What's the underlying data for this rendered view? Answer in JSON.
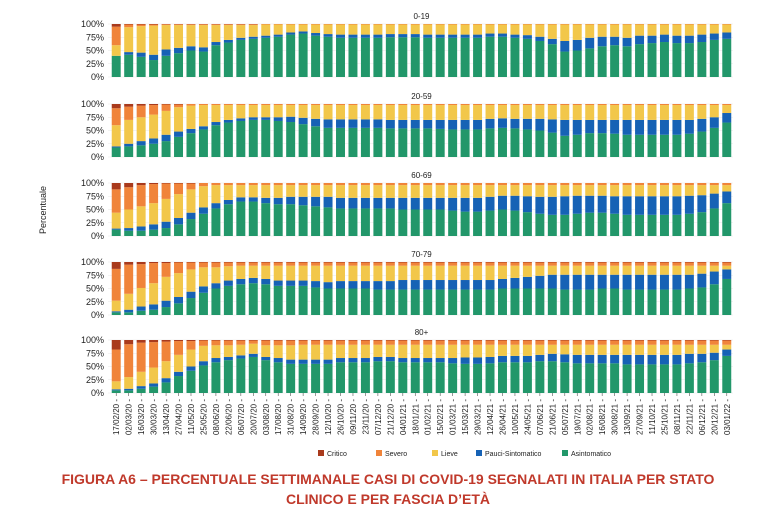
{
  "chart_data": {
    "type": "bar",
    "stacked": true,
    "ylabel": "Percentuale",
    "y_ticks": [
      "100%",
      "75%",
      "50%",
      "25%",
      "0%"
    ],
    "ylim": [
      0,
      100
    ],
    "x_tick_labels": [
      "17/02/20",
      "02/03/20",
      "16/03/20",
      "30/03/20",
      "13/04/20",
      "27/04/20",
      "11/05/20",
      "25/05/20",
      "08/06/20",
      "22/06/20",
      "06/07/20",
      "20/07/20",
      "03/08/20",
      "17/08/20",
      "31/08/20",
      "14/09/20",
      "28/09/20",
      "12/10/20",
      "26/10/20",
      "09/11/20",
      "23/11/20",
      "07/12/20",
      "21/12/20",
      "04/01/21",
      "18/01/21",
      "01/02/21",
      "15/02/21",
      "01/03/21",
      "15/03/21",
      "29/03/21",
      "12/04/21",
      "26/04/21",
      "10/05/21",
      "24/05/21",
      "07/06/21",
      "21/06/21",
      "05/07/21",
      "19/07/21",
      "02/08/21",
      "16/08/21",
      "30/08/21",
      "13/09/21",
      "27/09/21",
      "11/10/21",
      "25/10/21",
      "08/11/21",
      "22/11/21",
      "06/12/21",
      "20/12/21",
      "03/01/22"
    ],
    "legend": {
      "placement": "bottom",
      "entries": [
        {
          "name": "Critico",
          "color": "#a93a1c"
        },
        {
          "name": "Severo",
          "color": "#f0843a"
        },
        {
          "name": "Lieve",
          "color": "#f2c74a"
        },
        {
          "name": "Pauci-Sintomatico",
          "color": "#1662b5"
        },
        {
          "name": "Asintomatico",
          "color": "#22976a"
        }
      ]
    },
    "panels": [
      {
        "title": "0-19",
        "asintomatico": [
          40,
          42,
          38,
          32,
          40,
          45,
          50,
          48,
          60,
          65,
          70,
          72,
          74,
          76,
          80,
          82,
          78,
          76,
          74,
          74,
          74,
          74,
          75,
          75,
          75,
          74,
          74,
          74,
          74,
          74,
          76,
          76,
          74,
          72,
          68,
          62,
          48,
          50,
          54,
          58,
          60,
          58,
          62,
          64,
          66,
          64,
          64,
          66,
          70,
          72
        ],
        "pauci": [
          0,
          5,
          8,
          10,
          12,
          10,
          8,
          8,
          6,
          5,
          4,
          4,
          4,
          4,
          4,
          4,
          5,
          5,
          6,
          6,
          6,
          6,
          6,
          6,
          6,
          6,
          6,
          6,
          6,
          6,
          6,
          6,
          6,
          7,
          8,
          10,
          20,
          20,
          20,
          18,
          16,
          16,
          16,
          14,
          14,
          14,
          14,
          14,
          12,
          12
        ],
        "lieve": [
          20,
          47,
          50,
          55,
          46,
          43,
          40,
          42,
          32,
          28,
          24,
          22,
          21,
          19,
          15,
          13,
          16,
          18,
          19,
          19,
          19,
          19,
          18,
          18,
          18,
          19,
          19,
          19,
          19,
          19,
          17,
          17,
          19,
          20,
          23,
          27,
          31,
          29,
          25,
          23,
          23,
          25,
          21,
          21,
          19,
          21,
          21,
          19,
          17,
          15
        ],
        "severo": [
          35,
          5,
          3,
          2,
          1.5,
          1.5,
          1.5,
          1.5,
          1.5,
          1.5,
          1.5,
          1.5,
          1,
          1,
          1,
          1,
          1,
          1,
          1,
          1,
          1,
          1,
          1,
          1,
          1,
          1,
          1,
          1,
          1,
          1,
          1,
          1,
          1,
          1,
          1,
          1,
          1,
          1,
          1,
          1,
          1,
          1,
          1,
          1,
          1,
          1,
          1,
          1,
          1,
          1
        ],
        "critico": [
          5,
          1,
          1,
          1,
          0.5,
          0.5,
          0.5,
          0.5,
          0.5,
          0.5,
          0.5,
          0.5,
          0,
          0,
          0,
          0,
          0,
          0,
          0,
          0,
          0,
          0,
          0,
          0,
          0,
          0,
          0,
          0,
          0,
          0,
          0,
          0,
          0,
          0,
          0,
          0,
          0,
          0,
          0,
          0,
          0,
          0,
          0,
          0,
          0,
          0,
          0,
          0,
          0,
          0
        ]
      },
      {
        "title": "20-59",
        "asintomatico": [
          18,
          20,
          22,
          25,
          30,
          38,
          45,
          52,
          60,
          65,
          68,
          70,
          70,
          68,
          66,
          62,
          58,
          55,
          55,
          55,
          55,
          55,
          54,
          54,
          54,
          54,
          53,
          52,
          52,
          52,
          54,
          55,
          54,
          52,
          50,
          46,
          40,
          42,
          45,
          45,
          44,
          42,
          42,
          42,
          42,
          42,
          44,
          48,
          55,
          65
        ],
        "pauci": [
          2,
          5,
          8,
          10,
          12,
          10,
          8,
          6,
          6,
          5,
          5,
          5,
          5,
          7,
          10,
          12,
          14,
          16,
          16,
          16,
          16,
          16,
          16,
          16,
          16,
          16,
          17,
          18,
          18,
          18,
          18,
          18,
          18,
          20,
          22,
          25,
          30,
          28,
          25,
          25,
          26,
          28,
          28,
          28,
          28,
          28,
          26,
          24,
          20,
          18
        ],
        "lieve": [
          40,
          45,
          45,
          45,
          45,
          46,
          44,
          40,
          32,
          28,
          25,
          23,
          23,
          23,
          22,
          24,
          26,
          27,
          27,
          27,
          27,
          27,
          28,
          28,
          28,
          28,
          28,
          28,
          28,
          28,
          26,
          25,
          26,
          26,
          26,
          27,
          28,
          28,
          28,
          28,
          28,
          28,
          28,
          28,
          28,
          28,
          28,
          26,
          23,
          15
        ],
        "severo": [
          32,
          25,
          22,
          18,
          12,
          5,
          3,
          2,
          2,
          2,
          2,
          2,
          2,
          2,
          2,
          2,
          2,
          2,
          2,
          2,
          2,
          2,
          2,
          2,
          2,
          2,
          2,
          2,
          2,
          2,
          2,
          2,
          2,
          2,
          2,
          2,
          2,
          2,
          2,
          2,
          2,
          2,
          2,
          2,
          2,
          2,
          2,
          2,
          2,
          2
        ],
        "critico": [
          8,
          5,
          3,
          2,
          1,
          1,
          0,
          0,
          0,
          0,
          0,
          0,
          0,
          0,
          0,
          0,
          0,
          0,
          0,
          0,
          0,
          0,
          0,
          0,
          0,
          0,
          0,
          0,
          0,
          0,
          0,
          0,
          0,
          0,
          0,
          0,
          0,
          0,
          0,
          0,
          0,
          0,
          0,
          0,
          0,
          0,
          0,
          0,
          0,
          0
        ]
      },
      {
        "title": "60-69",
        "asintomatico": [
          12,
          10,
          10,
          12,
          15,
          22,
          32,
          42,
          52,
          60,
          65,
          65,
          62,
          60,
          60,
          58,
          56,
          54,
          52,
          52,
          52,
          52,
          52,
          50,
          50,
          50,
          50,
          48,
          46,
          46,
          48,
          50,
          48,
          45,
          42,
          40,
          40,
          42,
          44,
          44,
          42,
          40,
          40,
          40,
          40,
          40,
          42,
          45,
          52,
          62
        ],
        "pauci": [
          2,
          5,
          8,
          10,
          12,
          12,
          12,
          12,
          10,
          8,
          8,
          8,
          10,
          12,
          14,
          16,
          18,
          20,
          20,
          20,
          20,
          20,
          20,
          22,
          22,
          22,
          22,
          24,
          26,
          26,
          26,
          26,
          28,
          30,
          32,
          34,
          35,
          34,
          32,
          32,
          33,
          35,
          35,
          35,
          35,
          35,
          34,
          32,
          28,
          22
        ],
        "lieve": [
          30,
          35,
          38,
          40,
          43,
          45,
          44,
          40,
          34,
          28,
          23,
          23,
          24,
          24,
          22,
          22,
          22,
          22,
          24,
          24,
          24,
          24,
          24,
          24,
          24,
          24,
          24,
          24,
          24,
          24,
          22,
          20,
          20,
          21,
          22,
          22,
          21,
          20,
          20,
          20,
          21,
          21,
          21,
          21,
          21,
          21,
          20,
          19,
          16,
          12
        ],
        "severo": [
          44,
          42,
          40,
          36,
          29,
          20,
          11,
          6,
          4,
          4,
          4,
          4,
          4,
          4,
          4,
          4,
          4,
          4,
          4,
          4,
          4,
          4,
          4,
          4,
          4,
          4,
          4,
          4,
          4,
          4,
          4,
          4,
          4,
          4,
          4,
          4,
          4,
          4,
          4,
          4,
          4,
          4,
          4,
          4,
          4,
          4,
          4,
          4,
          4,
          4
        ],
        "critico": [
          12,
          8,
          4,
          2,
          1,
          1,
          1,
          0,
          0,
          0,
          0,
          0,
          0,
          0,
          0,
          0,
          0,
          0,
          0,
          0,
          0,
          0,
          0,
          0,
          0,
          0,
          0,
          0,
          0,
          0,
          0,
          0,
          0,
          0,
          0,
          0,
          0,
          0,
          0,
          0,
          0,
          0,
          0,
          0,
          0,
          0,
          0,
          0,
          0,
          0
        ]
      },
      {
        "title": "70-79",
        "asintomatico": [
          5,
          5,
          8,
          10,
          15,
          22,
          32,
          42,
          50,
          55,
          58,
          60,
          58,
          55,
          55,
          55,
          52,
          50,
          50,
          50,
          50,
          48,
          48,
          48,
          48,
          48,
          48,
          48,
          48,
          48,
          48,
          50,
          50,
          50,
          50,
          50,
          48,
          48,
          48,
          50,
          50,
          48,
          48,
          48,
          48,
          48,
          50,
          52,
          58,
          68
        ],
        "pauci": [
          2,
          5,
          8,
          10,
          12,
          12,
          12,
          12,
          10,
          10,
          10,
          10,
          10,
          10,
          10,
          10,
          12,
          12,
          14,
          14,
          14,
          16,
          16,
          18,
          18,
          18,
          18,
          18,
          18,
          18,
          18,
          18,
          20,
          22,
          24,
          26,
          28,
          28,
          28,
          26,
          26,
          28,
          28,
          28,
          28,
          28,
          26,
          26,
          24,
          18
        ],
        "lieve": [
          20,
          30,
          35,
          40,
          45,
          45,
          42,
          36,
          30,
          27,
          25,
          23,
          25,
          28,
          28,
          28,
          29,
          31,
          29,
          29,
          29,
          29,
          29,
          27,
          27,
          27,
          27,
          27,
          27,
          27,
          27,
          25,
          23,
          21,
          19,
          17,
          17,
          17,
          17,
          17,
          17,
          17,
          17,
          17,
          17,
          17,
          17,
          15,
          11,
          7
        ],
        "severo": [
          60,
          55,
          45,
          38,
          26,
          20,
          13,
          9,
          9,
          7,
          6,
          6,
          6,
          6,
          6,
          6,
          6,
          6,
          6,
          6,
          6,
          6,
          6,
          6,
          6,
          6,
          6,
          6,
          6,
          6,
          6,
          6,
          6,
          6,
          6,
          6,
          6,
          6,
          6,
          6,
          6,
          6,
          6,
          6,
          6,
          6,
          6,
          6,
          6,
          6
        ],
        "critico": [
          13,
          5,
          4,
          2,
          2,
          1,
          1,
          1,
          1,
          1,
          1,
          1,
          1,
          1,
          1,
          1,
          1,
          1,
          1,
          1,
          1,
          1,
          1,
          1,
          1,
          1,
          1,
          1,
          1,
          1,
          1,
          1,
          1,
          1,
          1,
          1,
          1,
          1,
          1,
          1,
          1,
          1,
          1,
          1,
          1,
          1,
          1,
          1,
          1,
          1
        ]
      },
      {
        "title": "80+",
        "asintomatico": [
          5,
          5,
          8,
          12,
          20,
          32,
          42,
          52,
          58,
          62,
          65,
          68,
          62,
          58,
          55,
          55,
          55,
          55,
          58,
          58,
          58,
          60,
          60,
          58,
          58,
          58,
          58,
          56,
          55,
          55,
          56,
          58,
          58,
          58,
          60,
          60,
          58,
          56,
          56,
          56,
          56,
          54,
          54,
          54,
          54,
          54,
          56,
          58,
          62,
          70
        ],
        "pauci": [
          2,
          3,
          5,
          6,
          8,
          8,
          8,
          8,
          8,
          6,
          6,
          6,
          6,
          8,
          8,
          8,
          8,
          8,
          8,
          8,
          8,
          8,
          8,
          8,
          8,
          8,
          8,
          10,
          12,
          12,
          12,
          12,
          12,
          12,
          12,
          14,
          15,
          16,
          16,
          16,
          16,
          18,
          18,
          18,
          18,
          18,
          18,
          16,
          14,
          12
        ],
        "lieve": [
          15,
          22,
          27,
          30,
          32,
          32,
          32,
          29,
          24,
          22,
          20,
          19,
          22,
          24,
          27,
          28,
          28,
          28,
          25,
          25,
          25,
          23,
          23,
          25,
          25,
          25,
          25,
          25,
          24,
          24,
          23,
          21,
          21,
          21,
          19,
          17,
          18,
          19,
          19,
          19,
          19,
          19,
          19,
          19,
          19,
          19,
          17,
          17,
          15,
          9
        ],
        "severo": [
          60,
          62,
          55,
          48,
          37,
          26,
          16,
          10,
          9,
          9,
          8,
          6,
          9,
          9,
          9,
          8,
          8,
          8,
          8,
          8,
          8,
          8,
          8,
          8,
          8,
          8,
          8,
          8,
          8,
          8,
          8,
          8,
          8,
          8,
          8,
          8,
          8,
          8,
          8,
          8,
          8,
          8,
          8,
          8,
          8,
          8,
          8,
          8,
          8,
          8
        ],
        "critico": [
          18,
          8,
          5,
          4,
          3,
          2,
          2,
          1,
          1,
          1,
          1,
          1,
          1,
          1,
          1,
          1,
          1,
          1,
          1,
          1,
          1,
          1,
          1,
          1,
          1,
          1,
          1,
          1,
          1,
          1,
          1,
          1,
          1,
          1,
          1,
          1,
          1,
          1,
          1,
          1,
          1,
          1,
          1,
          1,
          1,
          1,
          1,
          1,
          1,
          1
        ]
      }
    ]
  },
  "caption": {
    "line1": "FIGURA A6 – PERCENTUALE SETTIMANALE CASI DI COVID-19 SEGNALATI IN ITALIA PER STATO",
    "line2": "CLINICO E PER FASCIA D’ETÀ"
  }
}
